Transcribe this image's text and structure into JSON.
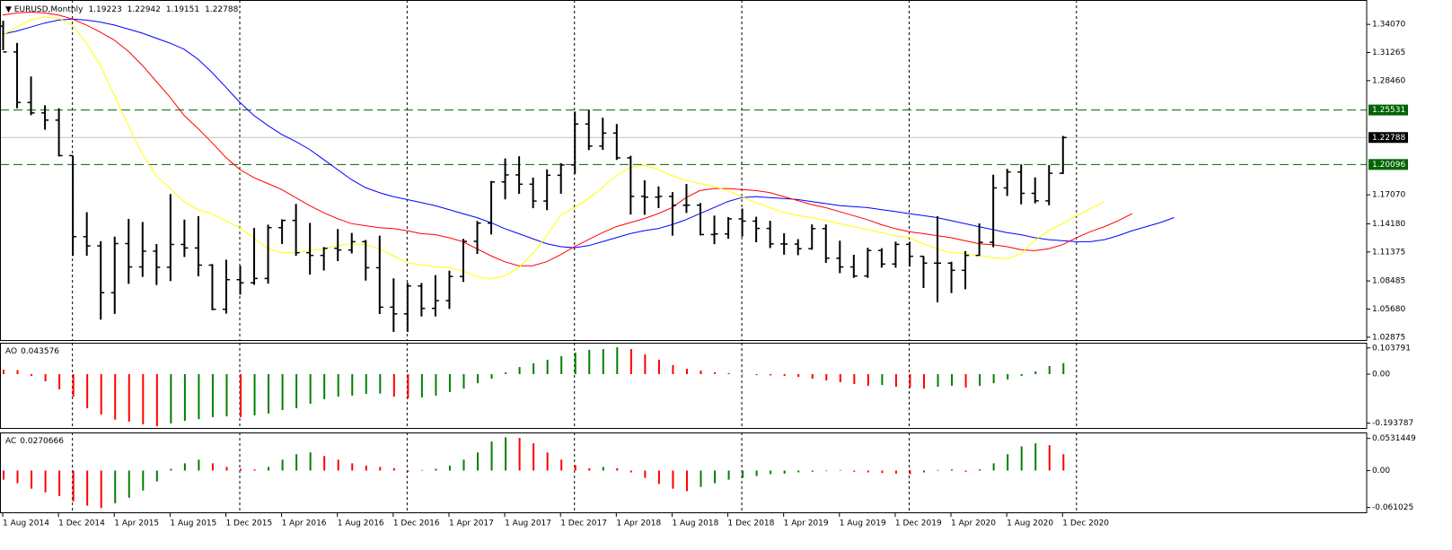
{
  "chart_data": [
    {
      "type": "ohlc",
      "title": "EURUSD,Monthly",
      "categories": [
        "1 Aug 2014",
        null,
        null,
        null,
        "1 Dec 2014",
        null,
        null,
        null,
        "1 Apr 2015",
        null,
        null,
        null,
        "1 Aug 2015",
        null,
        null,
        null,
        "1 Dec 2015",
        null,
        null,
        null,
        "1 Apr 2016",
        null,
        null,
        null,
        "1 Aug 2016",
        null,
        null,
        null,
        "1 Dec 2016",
        null,
        null,
        null,
        "1 Apr 2017",
        null,
        null,
        null,
        "1 Aug 2017",
        null,
        null,
        null,
        "1 Dec 2017",
        null,
        null,
        null,
        "1 Apr 2018",
        null,
        null,
        null,
        "1 Aug 2018",
        null,
        null,
        null,
        "1 Dec 2018",
        null,
        null,
        null,
        "1 Apr 2019",
        null,
        null,
        null,
        "1 Aug 2019",
        null,
        null,
        null,
        "1 Dec 2019",
        null,
        null,
        null,
        "1 Apr 2020",
        null,
        null,
        null,
        "1 Aug 2020",
        null,
        null,
        null,
        "1 Dec 2020",
        null,
        null,
        null,
        null,
        null,
        null,
        null,
        null
      ],
      "open": [
        1.3389,
        1.3132,
        1.2628,
        1.2524,
        1.2452,
        1.2098,
        1.129,
        1.1198,
        1.0731,
        1.1221,
        1.0988,
        1.1145,
        1.0985,
        1.1212,
        1.1177,
        1.1006,
        1.0566,
        1.0861,
        1.083,
        1.0873,
        1.138,
        1.1452,
        1.113,
        1.1103,
        1.1174,
        1.1157,
        1.124,
        1.098,
        1.0587,
        1.052,
        1.0798,
        1.0575,
        1.0652,
        1.0893,
        1.1243,
        1.1425,
        1.1836,
        1.1906,
        1.1813,
        1.1645,
        1.1902,
        1.2005,
        1.2413,
        1.2193,
        1.2323,
        1.2076,
        1.1692,
        1.1684,
        1.1691,
        1.1603,
        1.1604,
        1.1311,
        1.1317,
        1.1467,
        1.1445,
        1.1372,
        1.1218,
        1.1216,
        1.117,
        1.137,
        1.1075,
        1.0988,
        1.0898,
        1.1152,
        1.1017,
        1.1213,
        1.1094,
        1.1026,
        1.1026,
        1.0954,
        1.1103,
        1.1234,
        1.1776,
        1.1935,
        1.1722,
        1.1647,
        1.19223,
        null,
        null,
        null,
        null,
        null,
        null,
        null,
        null
      ],
      "high": [
        1.3444,
        1.3222,
        1.2887,
        1.26,
        1.257,
        1.21,
        1.1534,
        1.1245,
        1.129,
        1.1467,
        1.1436,
        1.1216,
        1.1714,
        1.146,
        1.1495,
        1.1017,
        1.106,
        1.1,
        1.1376,
        1.141,
        1.1463,
        1.1616,
        1.1427,
        1.1186,
        1.1366,
        1.1327,
        1.1257,
        1.13,
        1.0874,
        1.0829,
        1.0828,
        1.0906,
        1.0951,
        1.1268,
        1.1446,
        1.1845,
        1.207,
        1.2092,
        1.188,
        1.1961,
        1.2023,
        1.2537,
        1.2556,
        1.2476,
        1.2414,
        1.2097,
        1.1852,
        1.1791,
        1.1734,
        1.1815,
        1.1625,
        1.15,
        1.1485,
        1.157,
        1.1488,
        1.1448,
        1.1324,
        1.1265,
        1.1412,
        1.1412,
        1.125,
        1.1109,
        1.1179,
        1.1175,
        1.124,
        1.1239,
        1.1096,
        1.1495,
        1.104,
        1.1146,
        1.1422,
        1.1908,
        1.1966,
        1.2011,
        1.1881,
        1.2003,
        1.22942,
        null,
        null,
        null,
        null,
        null,
        null,
        null,
        null
      ],
      "low": [
        1.315,
        1.2571,
        1.2501,
        1.2357,
        1.209,
        1.1098,
        1.11,
        1.0462,
        1.052,
        1.0819,
        1.0889,
        1.0808,
        1.0847,
        1.1087,
        1.0895,
        1.0557,
        1.0523,
        1.0711,
        1.081,
        1.0822,
        1.1217,
        1.1098,
        1.0912,
        1.0952,
        1.1046,
        1.1122,
        1.0852,
        1.0518,
        1.034,
        1.034,
        1.0494,
        1.0494,
        1.0569,
        1.0839,
        1.1118,
        1.1312,
        1.1662,
        1.1717,
        1.1574,
        1.1554,
        1.1718,
        1.1916,
        1.2153,
        1.2155,
        1.2055,
        1.151,
        1.1508,
        1.1575,
        1.13,
        1.1526,
        1.1302,
        1.1215,
        1.1269,
        1.129,
        1.1234,
        1.1176,
        1.111,
        1.1105,
        1.116,
        1.1028,
        1.0926,
        1.0879,
        1.0879,
        1.0981,
        1.0981,
        1.0992,
        1.0778,
        1.0636,
        1.0727,
        1.0766,
        1.11,
        1.1185,
        1.1696,
        1.1612,
        1.1622,
        1.1603,
        1.19151,
        null,
        null,
        null,
        null,
        null,
        null,
        null,
        null
      ],
      "close": [
        1.3132,
        1.2628,
        1.2524,
        1.2452,
        1.2098,
        1.129,
        1.1198,
        1.0731,
        1.1221,
        1.0988,
        1.1145,
        1.0985,
        1.1212,
        1.1177,
        1.1006,
        1.0566,
        1.0861,
        1.083,
        1.0873,
        1.138,
        1.1452,
        1.113,
        1.1103,
        1.1174,
        1.1157,
        1.124,
        1.098,
        1.0587,
        1.052,
        1.0798,
        1.0575,
        1.0652,
        1.0893,
        1.1243,
        1.1425,
        1.1836,
        1.1906,
        1.1813,
        1.1645,
        1.1902,
        1.2005,
        1.2413,
        1.2193,
        1.2323,
        1.2076,
        1.1692,
        1.1684,
        1.1691,
        1.1603,
        1.1604,
        1.1311,
        1.1317,
        1.1467,
        1.1445,
        1.1372,
        1.1218,
        1.1216,
        1.117,
        1.137,
        1.1075,
        1.0988,
        1.0898,
        1.1152,
        1.1017,
        1.1213,
        1.1094,
        1.1026,
        1.1026,
        1.0954,
        1.1103,
        1.1234,
        1.1776,
        1.1935,
        1.1722,
        1.1647,
        1.1922,
        1.22788,
        null,
        null,
        null,
        null,
        null,
        null,
        null,
        null
      ],
      "bar_color": "#000000",
      "series": [
        {
          "color": "#0000ff",
          "values": [
            1.331,
            1.334,
            1.338,
            1.342,
            1.345,
            1.346,
            1.345,
            1.343,
            1.34,
            1.336,
            1.332,
            1.327,
            1.322,
            1.316,
            1.306,
            1.293,
            1.278,
            1.263,
            1.25,
            1.24,
            1.231,
            1.224,
            1.216,
            1.206,
            1.196,
            1.186,
            1.178,
            1.173,
            1.169,
            1.166,
            1.163,
            1.16,
            1.156,
            1.152,
            1.148,
            1.143,
            1.137,
            1.132,
            1.127,
            1.122,
            1.119,
            1.118,
            1.12,
            1.124,
            1.128,
            1.132,
            1.135,
            1.137,
            1.141,
            1.146,
            1.152,
            1.158,
            1.164,
            1.168,
            1.169,
            1.168,
            1.167,
            1.166,
            1.164,
            1.162,
            1.16,
            1.159,
            1.158,
            1.156,
            1.154,
            1.152,
            1.15,
            1.148,
            1.145,
            1.142,
            1.139,
            1.136,
            1.133,
            1.131,
            1.128,
            1.126,
            1.125,
            1.124,
            1.124,
            1.126,
            1.13,
            1.135,
            1.139,
            1.143,
            1.148
          ]
        },
        {
          "color": "#ff0000",
          "values": [
            1.35,
            1.352,
            1.353,
            1.352,
            1.35,
            1.346,
            1.34,
            1.333,
            1.325,
            1.314,
            1.3,
            1.284,
            1.268,
            1.25,
            1.237,
            1.223,
            1.208,
            1.196,
            1.188,
            1.182,
            1.176,
            1.168,
            1.16,
            1.153,
            1.147,
            1.142,
            1.14,
            1.138,
            1.137,
            1.135,
            1.132,
            1.131,
            1.128,
            1.124,
            1.117,
            1.11,
            1.104,
            1.1,
            1.1,
            1.104,
            1.111,
            1.119,
            1.126,
            1.133,
            1.139,
            1.143,
            1.147,
            1.152,
            1.158,
            1.168,
            1.175,
            1.177,
            1.177,
            1.176,
            1.175,
            1.173,
            1.169,
            1.165,
            1.161,
            1.158,
            1.154,
            1.15,
            1.146,
            1.141,
            1.137,
            1.134,
            1.132,
            1.13,
            1.128,
            1.125,
            1.122,
            1.121,
            1.119,
            1.116,
            1.115,
            1.117,
            1.121,
            1.128,
            1.134,
            1.139,
            1.145,
            1.152,
            null,
            null,
            null
          ]
        },
        {
          "color": "#ffff00",
          "values": [
            1.33,
            1.338,
            1.345,
            1.348,
            1.347,
            1.34,
            1.322,
            1.3,
            1.27,
            1.24,
            1.212,
            1.19,
            1.177,
            1.164,
            1.156,
            1.152,
            1.145,
            1.138,
            1.128,
            1.117,
            1.113,
            1.113,
            1.115,
            1.117,
            1.12,
            1.122,
            1.121,
            1.117,
            1.11,
            1.103,
            1.101,
            1.099,
            1.098,
            1.095,
            1.089,
            1.087,
            1.09,
            1.098,
            1.112,
            1.13,
            1.15,
            1.158,
            1.167,
            1.178,
            1.19,
            1.198,
            1.2,
            1.196,
            1.19,
            1.185,
            1.182,
            1.179,
            1.175,
            1.169,
            1.163,
            1.158,
            1.153,
            1.15,
            1.148,
            1.145,
            1.142,
            1.139,
            1.136,
            1.133,
            1.13,
            1.128,
            1.122,
            1.117,
            1.113,
            1.112,
            1.11,
            1.108,
            1.107,
            1.112,
            1.125,
            1.135,
            1.142,
            1.15,
            1.157,
            1.164,
            null,
            null,
            null,
            null,
            null
          ]
        }
      ],
      "hlines": [
        1.25531,
        1.20096
      ],
      "hline_color": "#006400",
      "ylim": [
        1.025,
        1.365
      ],
      "yticks": [
        {
          "value": 1.3407,
          "label": "1.34070"
        },
        1.31265,
        {
          "value": 1.2846,
          "label": "1.28460"
        },
        {
          "value": 1.1707,
          "label": "1.17070"
        },
        {
          "value": 1.1418,
          "label": "1.14180"
        },
        1.11375,
        1.08485,
        {
          "value": 1.0568,
          "label": "1.05680"
        },
        1.02875
      ]
    },
    {
      "type": "bar",
      "name": "AO",
      "up_color": "#008000",
      "down_color": "#ff0000",
      "values": [
        0.018,
        0.016,
        -0.007,
        -0.028,
        -0.06,
        -0.089,
        -0.135,
        -0.16,
        -0.18,
        -0.188,
        -0.199,
        -0.206,
        -0.195,
        -0.185,
        -0.178,
        -0.17,
        -0.167,
        -0.17,
        -0.163,
        -0.156,
        -0.142,
        -0.135,
        -0.117,
        -0.099,
        -0.089,
        -0.085,
        -0.078,
        -0.077,
        -0.089,
        -0.096,
        -0.092,
        -0.085,
        -0.071,
        -0.057,
        -0.036,
        -0.018,
        0.007,
        0.028,
        0.043,
        0.057,
        0.071,
        0.085,
        0.096,
        0.099,
        0.106,
        0.099,
        0.078,
        0.057,
        0.036,
        0.021,
        0.014,
        0.007,
        0.004,
        0.001,
        -0.004,
        -0.005,
        -0.007,
        -0.011,
        -0.018,
        -0.025,
        -0.032,
        -0.039,
        -0.046,
        -0.043,
        -0.05,
        -0.053,
        -0.057,
        -0.05,
        -0.046,
        -0.053,
        -0.046,
        -0.036,
        -0.021,
        -0.007,
        0.011,
        0.032,
        0.043576
      ],
      "ylim": [
        -0.2166,
        0.1243
      ],
      "yticks": [
        0.103791,
        {
          "value": 0,
          "label": "0.00"
        },
        -0.193787
      ]
    },
    {
      "type": "bar",
      "name": "AC",
      "up_color": "#008000",
      "down_color": "#ff0000",
      "values": [
        -0.015,
        -0.021,
        -0.03,
        -0.036,
        -0.042,
        -0.051,
        -0.058,
        -0.062,
        -0.054,
        -0.045,
        -0.033,
        -0.018,
        0.003,
        0.012,
        0.018,
        0.012,
        0.006,
        0.003,
        0.002,
        0.006,
        0.018,
        0.027,
        0.03,
        0.024,
        0.018,
        0.012,
        0.008,
        0.006,
        0.004,
        -0.002,
        0.001,
        0.003,
        0.008,
        0.018,
        0.03,
        0.048,
        0.055,
        0.054,
        0.045,
        0.03,
        0.018,
        0.009,
        0.004,
        0.006,
        0.004,
        -0.003,
        -0.012,
        -0.022,
        -0.03,
        -0.034,
        -0.027,
        -0.021,
        -0.015,
        -0.012,
        -0.009,
        -0.006,
        -0.005,
        -0.003,
        -0.002,
        -0.001,
        0.001,
        -0.002,
        -0.003,
        -0.004,
        -0.005,
        -0.006,
        -0.003,
        0.001,
        0.002,
        -0.002,
        0.002,
        0.012,
        0.027,
        0.04,
        0.045,
        0.042,
        0.0270666
      ],
      "ylim": [
        -0.0705,
        0.063
      ],
      "yticks": [
        0.0531449,
        {
          "value": 0,
          "label": "0.00"
        },
        -0.061025
      ]
    }
  ]
}
